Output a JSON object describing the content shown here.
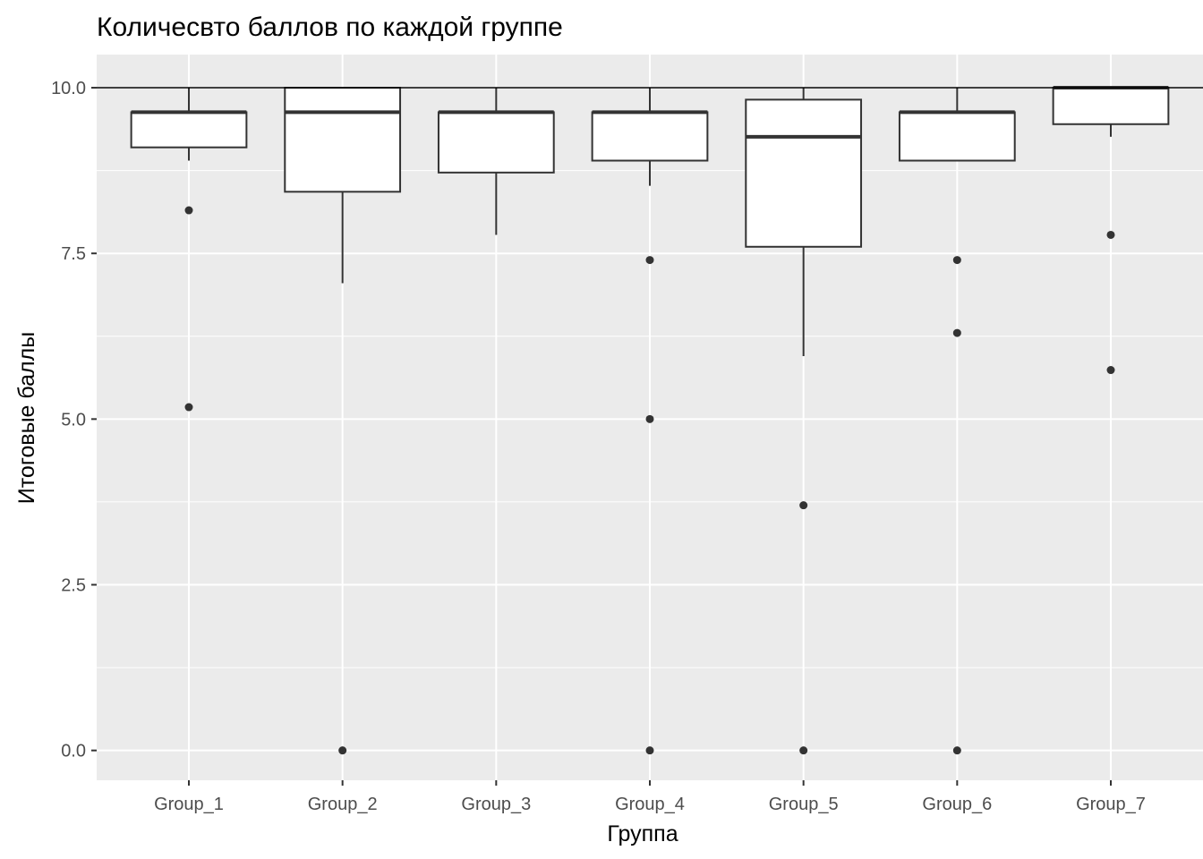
{
  "chart_data": {
    "type": "boxplot",
    "title": "Количесвто баллов по каждой группе",
    "xlabel": "Группа",
    "ylabel": "Итоговые баллы",
    "ylim": [
      -0.45,
      10.5
    ],
    "yticks": [
      0.0,
      2.5,
      5.0,
      7.5,
      10.0
    ],
    "ytick_labels": [
      "0.0",
      "2.5",
      "5.0",
      "7.5",
      "10.0"
    ],
    "reference_line": 10.0,
    "grid": true,
    "categories": [
      "Group_1",
      "Group_2",
      "Group_3",
      "Group_4",
      "Group_5",
      "Group_6",
      "Group_7"
    ],
    "boxes": [
      {
        "q1": 9.1,
        "median": 9.63,
        "q3": 9.63,
        "whisker_low": 8.9,
        "whisker_high": 10.0,
        "outliers": [
          8.15,
          5.18
        ]
      },
      {
        "q1": 8.43,
        "median": 9.63,
        "q3": 10.0,
        "whisker_low": 7.05,
        "whisker_high": 10.0,
        "outliers": [
          0.0
        ]
      },
      {
        "q1": 8.72,
        "median": 9.63,
        "q3": 9.63,
        "whisker_low": 7.78,
        "whisker_high": 10.0,
        "outliers": []
      },
      {
        "q1": 8.9,
        "median": 9.63,
        "q3": 9.63,
        "whisker_low": 8.52,
        "whisker_high": 10.0,
        "outliers": [
          7.4,
          5.0,
          0.0
        ]
      },
      {
        "q1": 7.6,
        "median": 9.26,
        "q3": 9.82,
        "whisker_low": 5.95,
        "whisker_high": 10.0,
        "outliers": [
          3.7,
          0.0
        ]
      },
      {
        "q1": 8.9,
        "median": 9.63,
        "q3": 9.63,
        "whisker_low": 8.9,
        "whisker_high": 10.0,
        "outliers": [
          7.4,
          6.3,
          0.0
        ]
      },
      {
        "q1": 9.45,
        "median": 10.0,
        "q3": 10.0,
        "whisker_low": 9.26,
        "whisker_high": 10.0,
        "outliers": [
          7.78,
          5.74
        ]
      }
    ],
    "colors": {
      "panel": "#ebebeb",
      "grid": "#ffffff",
      "box_fill": "#ffffff",
      "box_line": "#333333",
      "outlier": "#333333",
      "reference_line": "#000000"
    }
  }
}
